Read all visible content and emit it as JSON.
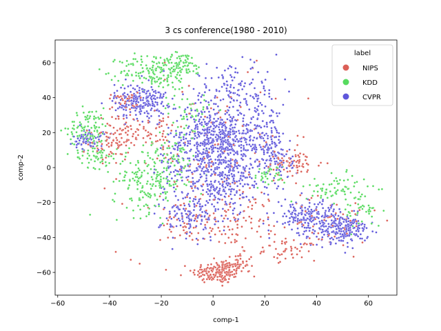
{
  "chart_data": {
    "type": "scatter",
    "title": "3 cs conference(1980 - 2010)",
    "xlabel": "comp-1",
    "ylabel": "comp-2",
    "xlim": [
      -61,
      71
    ],
    "ylim": [
      -73,
      73
    ],
    "xticks": [
      -60,
      -40,
      -20,
      0,
      20,
      40,
      60
    ],
    "yticks": [
      -60,
      -40,
      -20,
      0,
      20,
      40,
      60
    ],
    "legend": {
      "title": "label",
      "position": "top-right",
      "entries": [
        "NIPS",
        "KDD",
        "CVPR"
      ]
    },
    "colors": {
      "NIPS": "#db5f57",
      "KDD": "#57db5f",
      "CVPR": "#5f57db"
    },
    "series": [
      {
        "name": "NIPS",
        "clusters": [
          {
            "cx": 2,
            "cy": -60,
            "sx": 5,
            "sy": 3.2,
            "n": 170
          },
          {
            "cx": 9,
            "cy": -55,
            "sx": 3.5,
            "sy": 3,
            "n": 60
          },
          {
            "cx": -40,
            "cy": 14,
            "sx": 4,
            "sy": 6,
            "n": 70
          },
          {
            "cx": -33,
            "cy": 22,
            "sx": 4,
            "sy": 4,
            "n": 40
          },
          {
            "cx": -35,
            "cy": 38,
            "sx": 3,
            "sy": 2.5,
            "n": 35
          },
          {
            "cx": -22,
            "cy": 20,
            "sx": 4,
            "sy": 5,
            "n": 40
          },
          {
            "cx": 30,
            "cy": -47,
            "sx": 5,
            "sy": 3,
            "n": 50
          },
          {
            "cx": 32,
            "cy": 2,
            "sx": 5,
            "sy": 4,
            "n": 60
          },
          {
            "cx": -10,
            "cy": -32,
            "sx": 5,
            "sy": 5,
            "n": 45
          },
          {
            "cx": 10,
            "cy": -30,
            "sx": 8,
            "sy": 8,
            "n": 80
          },
          {
            "cx": 0,
            "cy": 0,
            "sx": 18,
            "sy": 25,
            "n": 150
          },
          {
            "cx": 45,
            "cy": -30,
            "sx": 10,
            "sy": 8,
            "n": 50
          }
        ]
      },
      {
        "name": "KDD",
        "clusters": [
          {
            "cx": -22,
            "cy": 55,
            "sx": 7,
            "sy": 5,
            "n": 170
          },
          {
            "cx": -12,
            "cy": 60,
            "sx": 4,
            "sy": 3,
            "n": 60
          },
          {
            "cx": -48,
            "cy": 22,
            "sx": 4,
            "sy": 6,
            "n": 110
          },
          {
            "cx": -45,
            "cy": 6,
            "sx": 4,
            "sy": 3,
            "n": 50
          },
          {
            "cx": -25,
            "cy": -8,
            "sx": 7,
            "sy": 9,
            "n": 180
          },
          {
            "cx": -15,
            "cy": 8,
            "sx": 5,
            "sy": 8,
            "n": 70
          },
          {
            "cx": 48,
            "cy": -12,
            "sx": 6,
            "sy": 4,
            "n": 70
          },
          {
            "cx": 58,
            "cy": -25,
            "sx": 4,
            "sy": 5,
            "n": 40
          },
          {
            "cx": 22,
            "cy": -5,
            "sx": 3,
            "sy": 3,
            "n": 35
          },
          {
            "cx": -10,
            "cy": 33,
            "sx": 5,
            "sy": 5,
            "n": 40
          }
        ]
      },
      {
        "name": "CVPR",
        "clusters": [
          {
            "cx": -28,
            "cy": 38,
            "sx": 5,
            "sy": 5,
            "n": 230
          },
          {
            "cx": -48,
            "cy": 16,
            "sx": 3,
            "sy": 3,
            "n": 70
          },
          {
            "cx": -3,
            "cy": 15,
            "sx": 6,
            "sy": 10,
            "n": 300
          },
          {
            "cx": 5,
            "cy": 18,
            "sx": 4,
            "sy": 6,
            "n": 150
          },
          {
            "cx": 5,
            "cy": -5,
            "sx": 9,
            "sy": 10,
            "n": 350
          },
          {
            "cx": 8,
            "cy": 42,
            "sx": 9,
            "sy": 8,
            "n": 160
          },
          {
            "cx": 18,
            "cy": 18,
            "sx": 5,
            "sy": 8,
            "n": 140
          },
          {
            "cx": 50,
            "cy": -35,
            "sx": 5,
            "sy": 4,
            "n": 220
          },
          {
            "cx": 36,
            "cy": -28,
            "sx": 6,
            "sy": 5,
            "n": 180
          },
          {
            "cx": -8,
            "cy": -28,
            "sx": 6,
            "sy": 7,
            "n": 130
          },
          {
            "cx": 25,
            "cy": 5,
            "sx": 3,
            "sy": 6,
            "n": 70
          },
          {
            "cx": -15,
            "cy": 4,
            "sx": 3,
            "sy": 10,
            "n": 60
          }
        ]
      }
    ]
  }
}
